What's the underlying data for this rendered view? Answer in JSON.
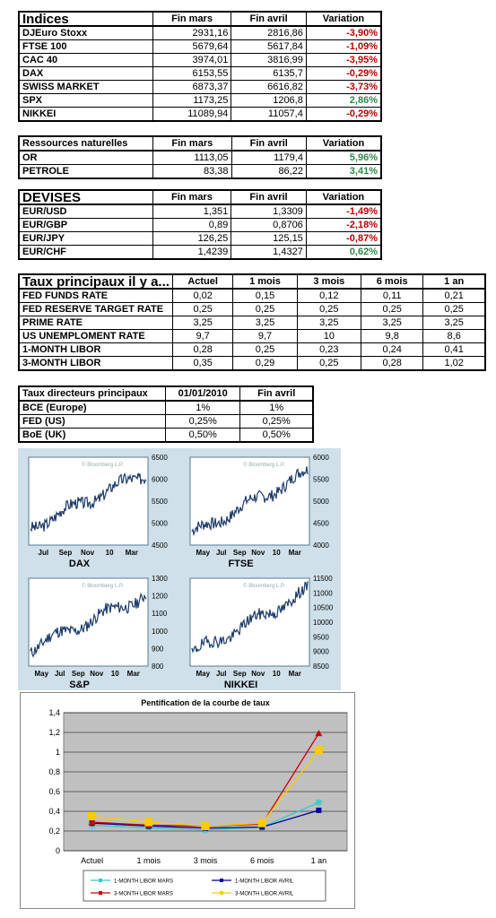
{
  "indices": {
    "headers": [
      "Indices",
      "Fin mars",
      "Fin avril",
      "Variation"
    ],
    "rows": [
      {
        "name": "DJEuro Stoxx",
        "mars": "2931,16",
        "avril": "2816,86",
        "var": "-3,90%",
        "sign": "neg"
      },
      {
        "name": "FTSE 100",
        "mars": "5679,64",
        "avril": "5617,84",
        "var": "-1,09%",
        "sign": "neg"
      },
      {
        "name": "CAC 40",
        "mars": "3974,01",
        "avril": "3816,99",
        "var": "-3,95%",
        "sign": "neg"
      },
      {
        "name": "DAX",
        "mars": "6153,55",
        "avril": "6135,7",
        "var": "-0,29%",
        "sign": "neg"
      },
      {
        "name": "SWISS MARKET",
        "mars": "6873,37",
        "avril": "6616,82",
        "var": "-3,73%",
        "sign": "neg"
      },
      {
        "name": "SPX",
        "mars": "1173,25",
        "avril": "1206,8",
        "var": "2,86%",
        "sign": "pos"
      },
      {
        "name": "NIKKEI",
        "mars": "11089,94",
        "avril": "11057,4",
        "var": "-0,29%",
        "sign": "neg"
      }
    ]
  },
  "ressources": {
    "headers": [
      "Ressources naturelles",
      "Fin mars",
      "Fin avril",
      "Variation"
    ],
    "rows": [
      {
        "name": "OR",
        "mars": "1113,05",
        "avril": "1179,4",
        "var": "5,96%",
        "sign": "pos"
      },
      {
        "name": "PETROLE",
        "mars": "83,38",
        "avril": "86,22",
        "var": "3,41%",
        "sign": "pos"
      }
    ]
  },
  "devises": {
    "headers": [
      "DEVISES",
      "Fin mars",
      "Fin avril",
      "Variation"
    ],
    "rows": [
      {
        "name": "EUR/USD",
        "mars": "1,351",
        "avril": "1,3309",
        "var": "-1,49%",
        "sign": "neg"
      },
      {
        "name": "EUR/GBP",
        "mars": "0,89",
        "avril": "0,8706",
        "var": "-2,18%",
        "sign": "neg"
      },
      {
        "name": "EUR/JPY",
        "mars": "126,25",
        "avril": "125,15",
        "var": "-0,87%",
        "sign": "neg"
      },
      {
        "name": "EUR/CHF",
        "mars": "1,4239",
        "avril": "1,4327",
        "var": "0,62%",
        "sign": "pos"
      }
    ]
  },
  "taux": {
    "headers": [
      "Taux principaux il y a...",
      "Actuel",
      "1 mois",
      "3 mois",
      "6 mois",
      "1 an"
    ],
    "rows": [
      {
        "name": "FED FUNDS RATE",
        "vals": [
          "0,02",
          "0,15",
          "0,12",
          "0,11",
          "0,21"
        ]
      },
      {
        "name": "FED RESERVE TARGET RATE",
        "vals": [
          "0,25",
          "0,25",
          "0,25",
          "0,25",
          "0,25"
        ]
      },
      {
        "name": "PRIME RATE",
        "vals": [
          "3,25",
          "3,25",
          "3,25",
          "3,25",
          "3,25"
        ]
      },
      {
        "name": "US UNEMPLOMENT RATE",
        "vals": [
          "9,7",
          "9,7",
          "10",
          "9,8",
          "8,6"
        ]
      },
      {
        "name": "1-MONTH LIBOR",
        "vals": [
          "0,28",
          "0,25",
          "0,23",
          "0,24",
          "0,41"
        ]
      },
      {
        "name": "3-MONTH LIBOR",
        "vals": [
          "0,35",
          "0,29",
          "0,25",
          "0,28",
          "1,02"
        ]
      }
    ]
  },
  "directeurs": {
    "headers": [
      "Taux directeurs principaux",
      "01/01/2010",
      "Fin avril"
    ],
    "rows": [
      {
        "name": "BCE (Europe)",
        "vals": [
          "1%",
          "1%"
        ]
      },
      {
        "name": "FED (US)",
        "vals": [
          "0,25%",
          "0,25%"
        ]
      },
      {
        "name": "BoE (UK)",
        "vals": [
          "0,50%",
          "0,50%"
        ]
      }
    ]
  },
  "mini_charts": {
    "watermark": "© Bloomberg L.P.",
    "panels": [
      {
        "id": "dax",
        "label": "DAX",
        "xticks": [
          "Jul",
          "Sep",
          "Nov",
          "10",
          "Mar"
        ],
        "yticks": [
          "6500",
          "6000",
          "5500",
          "5000",
          "4500"
        ],
        "ymin": 4500,
        "ymax": 6500,
        "start": 4900,
        "end": 6150,
        "seed": 3
      },
      {
        "id": "ftse",
        "label": "FTSE",
        "xticks": [
          "May",
          "Jul",
          "Sep",
          "Nov",
          "10",
          "Mar"
        ],
        "yticks": [
          "6000",
          "5500",
          "5000",
          "4500",
          "4000"
        ],
        "ymin": 4000,
        "ymax": 6000,
        "start": 4250,
        "end": 5650,
        "seed": 7
      },
      {
        "id": "sp",
        "label": "S&P",
        "xticks": [
          "May",
          "Jul",
          "Sep",
          "Nov",
          "10",
          "Mar"
        ],
        "yticks": [
          "1300",
          "1200",
          "1100",
          "1000",
          "900",
          "800"
        ],
        "ymin": 800,
        "ymax": 1300,
        "start": 900,
        "end": 1205,
        "seed": 11
      },
      {
        "id": "nikkei",
        "label": "NIKKEI",
        "xticks": [
          "May",
          "Jul",
          "Sep",
          "Nov",
          "10",
          "Mar"
        ],
        "yticks": [
          "11500",
          "11000",
          "10500",
          "10000",
          "9500",
          "9000",
          "8500"
        ],
        "ymin": 8500,
        "ymax": 11500,
        "start": 8900,
        "end": 11050,
        "seed": 19
      }
    ]
  },
  "chart_data": {
    "type": "line",
    "title": "Pentification de la courbe de taux",
    "categories": [
      "Actuel",
      "1 mois",
      "3 mois",
      "6 mois",
      "1 an"
    ],
    "ylim": [
      0,
      1.4
    ],
    "yticks": [
      "0",
      "0,2",
      "0,4",
      "0,6",
      "0,8",
      "1",
      "1,2",
      "1,4"
    ],
    "series": [
      {
        "name": "1-MONTH LIBOR MARS",
        "values": [
          0.26,
          0.23,
          0.21,
          0.24,
          0.49
        ],
        "color": "#33cccc",
        "marker": "star"
      },
      {
        "name": "1-MONTH LIBOR AVRIL",
        "values": [
          0.28,
          0.25,
          0.23,
          0.24,
          0.41
        ],
        "color": "#000099",
        "marker": "square"
      },
      {
        "name": "3-MONTH LIBOR MARS",
        "values": [
          0.29,
          0.26,
          0.25,
          0.27,
          1.19
        ],
        "color": "#cc0000",
        "marker": "triangle"
      },
      {
        "name": "3-MONTH LIBOR AVRIL",
        "values": [
          0.35,
          0.29,
          0.25,
          0.28,
          1.02
        ],
        "color": "#ffcc00",
        "marker": "square"
      }
    ]
  }
}
